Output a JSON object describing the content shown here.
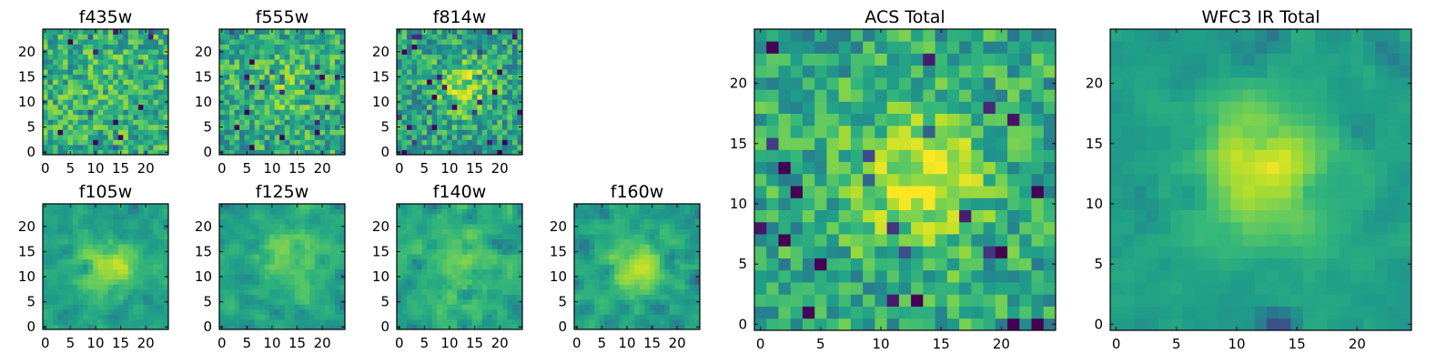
{
  "colormap": {
    "name": "viridis",
    "stops": [
      "#440154",
      "#482878",
      "#3e4989",
      "#31688e",
      "#26828e",
      "#1f9e89",
      "#35b779",
      "#6ece58",
      "#b5de2b",
      "#fde725"
    ]
  },
  "chart_data": [
    {
      "type": "heatmap",
      "panel": "f435w",
      "title": "f435w",
      "grid": [
        25,
        25
      ],
      "xlim": [
        0,
        24
      ],
      "ylim": [
        0,
        24
      ],
      "x_ticks": [
        "0",
        "5",
        "10",
        "15",
        "20"
      ],
      "y_ticks": [
        "0",
        "5",
        "10",
        "15",
        "20"
      ],
      "colormap": "viridis"
    },
    {
      "type": "heatmap",
      "panel": "f555w",
      "title": "f555w",
      "grid": [
        25,
        25
      ],
      "xlim": [
        0,
        24
      ],
      "ylim": [
        0,
        24
      ],
      "x_ticks": [
        "0",
        "5",
        "10",
        "15",
        "20"
      ],
      "y_ticks": [
        "0",
        "5",
        "10",
        "15",
        "20"
      ],
      "colormap": "viridis"
    },
    {
      "type": "heatmap",
      "panel": "f814w",
      "title": "f814w",
      "grid": [
        25,
        25
      ],
      "xlim": [
        0,
        24
      ],
      "ylim": [
        0,
        24
      ],
      "x_ticks": [
        "0",
        "5",
        "10",
        "15",
        "20"
      ],
      "y_ticks": [
        "0",
        "5",
        "10",
        "15",
        "20"
      ],
      "colormap": "viridis"
    },
    {
      "type": "heatmap",
      "panel": "f105w",
      "title": "f105w",
      "grid": [
        25,
        25
      ],
      "xlim": [
        0,
        24
      ],
      "ylim": [
        0,
        24
      ],
      "x_ticks": [
        "0",
        "5",
        "10",
        "15",
        "20"
      ],
      "y_ticks": [
        "0",
        "5",
        "10",
        "15",
        "20"
      ],
      "colormap": "viridis"
    },
    {
      "type": "heatmap",
      "panel": "f125w",
      "title": "f125w",
      "grid": [
        25,
        25
      ],
      "xlim": [
        0,
        24
      ],
      "ylim": [
        0,
        24
      ],
      "x_ticks": [
        "0",
        "5",
        "10",
        "15",
        "20"
      ],
      "y_ticks": [
        "0",
        "5",
        "10",
        "15",
        "20"
      ],
      "colormap": "viridis"
    },
    {
      "type": "heatmap",
      "panel": "f140w",
      "title": "f140w",
      "grid": [
        25,
        25
      ],
      "xlim": [
        0,
        24
      ],
      "ylim": [
        0,
        24
      ],
      "x_ticks": [
        "0",
        "5",
        "10",
        "15",
        "20"
      ],
      "y_ticks": [
        "0",
        "5",
        "10",
        "15",
        "20"
      ],
      "colormap": "viridis"
    },
    {
      "type": "heatmap",
      "panel": "f160w",
      "title": "f160w",
      "grid": [
        25,
        25
      ],
      "xlim": [
        0,
        24
      ],
      "ylim": [
        0,
        24
      ],
      "x_ticks": [
        "0",
        "5",
        "10",
        "15",
        "20"
      ],
      "y_ticks": [
        "0",
        "5",
        "10",
        "15",
        "20"
      ],
      "colormap": "viridis"
    },
    {
      "type": "heatmap",
      "panel": "acs-total",
      "title": "ACS Total",
      "grid": [
        25,
        25
      ],
      "xlim": [
        0,
        24
      ],
      "ylim": [
        0,
        24
      ],
      "x_ticks": [
        "0",
        "5",
        "10",
        "15",
        "20"
      ],
      "y_ticks": [
        "0",
        "5",
        "10",
        "15",
        "20"
      ],
      "colormap": "viridis"
    },
    {
      "type": "heatmap",
      "panel": "wfc3-ir-total",
      "title": "WFC3 IR Total",
      "grid": [
        25,
        25
      ],
      "xlim": [
        0,
        24
      ],
      "ylim": [
        0,
        24
      ],
      "x_ticks": [
        "0",
        "5",
        "10",
        "15",
        "20"
      ],
      "y_ticks": [
        "0",
        "5",
        "10",
        "15",
        "20"
      ],
      "colormap": "viridis"
    }
  ]
}
